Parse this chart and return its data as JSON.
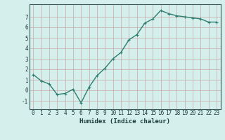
{
  "x": [
    0,
    1,
    2,
    3,
    4,
    5,
    6,
    7,
    8,
    9,
    10,
    11,
    12,
    13,
    14,
    15,
    16,
    17,
    18,
    19,
    20,
    21,
    22,
    23
  ],
  "y": [
    1.5,
    0.9,
    0.6,
    -0.4,
    -0.3,
    0.1,
    -1.2,
    0.3,
    1.4,
    2.1,
    3.0,
    3.6,
    4.8,
    5.3,
    6.4,
    6.8,
    7.6,
    7.3,
    7.1,
    7.0,
    6.9,
    6.8,
    6.5,
    6.5
  ],
  "line_color": "#2e7d6e",
  "marker": "+",
  "marker_size": 3,
  "xlabel": "Humidex (Indice chaleur)",
  "ylim": [
    -1.8,
    8.2
  ],
  "xlim": [
    -0.5,
    23.5
  ],
  "yticks": [
    -1,
    0,
    1,
    2,
    3,
    4,
    5,
    6,
    7
  ],
  "xticks": [
    0,
    1,
    2,
    3,
    4,
    5,
    6,
    7,
    8,
    9,
    10,
    11,
    12,
    13,
    14,
    15,
    16,
    17,
    18,
    19,
    20,
    21,
    22,
    23
  ],
  "background_color": "#d5efed",
  "grid_major_color": "#c8a8a8",
  "grid_minor_color": "#dfc8c8",
  "xlabel_fontsize": 6.5,
  "tick_fontsize": 5.5,
  "line_width": 1.0,
  "marker_edge_width": 0.8
}
